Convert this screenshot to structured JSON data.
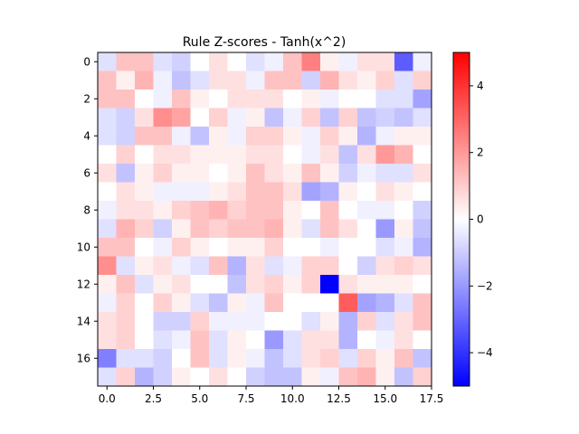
{
  "chart_data": {
    "type": "heatmap",
    "title": "Rule Z-scores - Tanh(x^2)",
    "xlabel": "",
    "ylabel": "",
    "xlim": [
      -0.5,
      17.5
    ],
    "ylim": [
      17.5,
      -0.5
    ],
    "x_ticks": [
      "0.0",
      "2.5",
      "5.0",
      "7.5",
      "10.0",
      "12.5",
      "15.0",
      "17.5"
    ],
    "x_tick_values": [
      0,
      2.5,
      5,
      7.5,
      10,
      12.5,
      15,
      17.5
    ],
    "y_ticks": [
      "0",
      "2",
      "4",
      "6",
      "8",
      "10",
      "12",
      "14",
      "16"
    ],
    "y_tick_values": [
      0,
      2,
      4,
      6,
      8,
      10,
      12,
      14,
      16
    ],
    "colormap": "bwr",
    "vmin": -5,
    "vmax": 5,
    "colorbar_ticks": [
      "4",
      "2",
      "0",
      "−2",
      "−4"
    ],
    "colorbar_tick_values": [
      4,
      2,
      0,
      -2,
      -4
    ],
    "colors": {
      "low": "#0000ff",
      "mid": "#ffffff",
      "high": "#ff0000"
    },
    "grid": false,
    "values": [
      [
        -0.6,
        1.2,
        1.2,
        -0.6,
        -0.9,
        0.0,
        0.6,
        0.0,
        -0.6,
        -0.3,
        1.2,
        2.5,
        0.3,
        -0.3,
        0.6,
        0.6,
        -3.2,
        -0.3
      ],
      [
        1.2,
        0.3,
        1.5,
        -0.3,
        -1.2,
        -0.6,
        0.6,
        0.6,
        -0.3,
        1.2,
        1.2,
        -0.9,
        1.5,
        0.6,
        0.3,
        0.9,
        -0.6,
        0.9
      ],
      [
        1.2,
        1.2,
        0.0,
        -0.3,
        1.2,
        0.3,
        0.0,
        0.6,
        0.6,
        0.6,
        0.0,
        0.3,
        -0.3,
        0.0,
        0.0,
        -0.6,
        -0.6,
        -1.8
      ],
      [
        -0.6,
        -0.9,
        0.6,
        2.2,
        1.8,
        0.0,
        0.9,
        -0.3,
        0.3,
        -1.2,
        -0.3,
        0.9,
        -1.2,
        0.9,
        -1.2,
        -0.9,
        -1.2,
        -0.6
      ],
      [
        -0.6,
        -0.9,
        1.2,
        1.2,
        -0.3,
        -1.2,
        0.3,
        -0.3,
        0.9,
        0.9,
        0.3,
        -0.3,
        0.9,
        0.3,
        -1.5,
        -0.3,
        0.3,
        0.3
      ],
      [
        0.0,
        0.9,
        0.0,
        0.6,
        0.6,
        0.3,
        0.3,
        0.3,
        0.6,
        0.6,
        0.0,
        -0.3,
        0.6,
        -1.2,
        0.6,
        2.0,
        1.5,
        0.0
      ],
      [
        0.6,
        -1.2,
        0.3,
        0.9,
        0.3,
        0.3,
        0.0,
        0.3,
        1.2,
        0.6,
        0.3,
        1.2,
        0.3,
        -0.9,
        -0.3,
        -0.6,
        -0.6,
        0.6
      ],
      [
        0.0,
        0.6,
        0.3,
        -0.3,
        -0.3,
        -0.3,
        0.3,
        0.6,
        1.2,
        1.2,
        0.6,
        -1.8,
        -1.5,
        0.3,
        0.0,
        0.6,
        0.3,
        0.0
      ],
      [
        -0.3,
        0.6,
        0.6,
        0.3,
        0.9,
        1.2,
        1.5,
        0.9,
        1.2,
        1.2,
        0.3,
        0.0,
        1.2,
        0.0,
        -0.3,
        -0.3,
        0.0,
        -0.9
      ],
      [
        -0.6,
        1.5,
        0.9,
        -0.9,
        0.3,
        1.2,
        0.9,
        1.2,
        1.2,
        1.5,
        0.3,
        -0.6,
        1.2,
        0.6,
        0.0,
        -2.0,
        0.3,
        -1.2
      ],
      [
        1.2,
        1.2,
        0.0,
        -0.3,
        0.9,
        0.3,
        0.0,
        0.3,
        0.3,
        0.9,
        0.0,
        0.0,
        -0.3,
        0.0,
        0.0,
        -0.6,
        -0.3,
        -1.5
      ],
      [
        2.2,
        -0.6,
        0.3,
        0.6,
        -0.3,
        -0.6,
        1.2,
        -1.5,
        0.6,
        -0.6,
        -0.3,
        0.9,
        0.9,
        0.0,
        -0.9,
        0.6,
        0.9,
        0.6
      ],
      [
        0.3,
        1.2,
        -0.6,
        0.3,
        0.6,
        0.0,
        0.0,
        -1.2,
        0.6,
        0.9,
        0.3,
        0.9,
        -5.0,
        0.6,
        0.3,
        0.3,
        0.3,
        0.0
      ],
      [
        -0.3,
        0.9,
        0.0,
        0.9,
        0.3,
        -0.6,
        -1.2,
        0.3,
        -0.3,
        1.2,
        0.0,
        0.0,
        0.0,
        3.2,
        -1.8,
        -1.5,
        -0.6,
        1.2
      ],
      [
        0.6,
        0.9,
        0.0,
        -0.9,
        -0.9,
        0.9,
        -0.3,
        -0.3,
        -0.3,
        0.0,
        0.0,
        -0.6,
        0.3,
        -1.5,
        0.9,
        -0.6,
        0.6,
        1.2
      ],
      [
        0.6,
        0.9,
        0.0,
        -0.6,
        -0.3,
        1.2,
        -0.6,
        0.3,
        0.0,
        -2.0,
        -0.6,
        0.6,
        0.6,
        -1.5,
        0.0,
        -0.3,
        0.6,
        0.0
      ],
      [
        -2.5,
        -0.6,
        -0.6,
        -0.9,
        0.0,
        1.2,
        -0.6,
        0.3,
        -0.3,
        -1.2,
        -0.6,
        0.6,
        0.9,
        -0.6,
        0.9,
        0.3,
        1.2,
        -1.2
      ],
      [
        -0.6,
        0.9,
        -1.5,
        -0.9,
        0.3,
        0.0,
        0.6,
        0.0,
        -0.9,
        -1.2,
        -1.2,
        0.3,
        -0.3,
        1.2,
        1.5,
        0.3,
        -1.2,
        0.9
      ]
    ]
  }
}
